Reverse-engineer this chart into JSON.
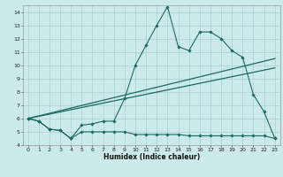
{
  "background_color": "#cdeaea",
  "grid_color": "#aacfcf",
  "line_color": "#1a6b5f",
  "xlim": [
    -0.5,
    23.5
  ],
  "ylim": [
    4,
    14.5
  ],
  "xlabel": "Humidex (Indice chaleur)",
  "curve1_x": [
    0,
    1,
    2,
    3,
    4,
    5,
    6,
    7,
    8,
    9,
    10,
    11,
    12,
    13,
    14,
    15,
    16,
    17,
    18,
    19,
    20,
    21,
    22,
    23
  ],
  "curve1_y": [
    6.0,
    5.8,
    5.2,
    5.1,
    4.5,
    5.5,
    5.6,
    5.8,
    5.8,
    7.5,
    10.0,
    11.5,
    13.0,
    14.4,
    11.4,
    11.1,
    12.5,
    12.5,
    12.0,
    11.1,
    10.6,
    7.8,
    6.5,
    4.5
  ],
  "curve2_x": [
    0,
    1,
    2,
    3,
    4,
    5,
    6,
    7,
    8,
    9,
    10,
    11,
    12,
    13,
    14,
    15,
    16,
    17,
    18,
    19,
    20,
    21,
    22,
    23
  ],
  "curve2_y": [
    6.0,
    5.8,
    5.2,
    5.1,
    4.5,
    5.0,
    5.0,
    5.0,
    5.0,
    5.0,
    4.8,
    4.8,
    4.8,
    4.8,
    4.8,
    4.7,
    4.7,
    4.7,
    4.7,
    4.7,
    4.7,
    4.7,
    4.7,
    4.5
  ],
  "trend1_x": [
    0,
    23
  ],
  "trend1_y": [
    6.0,
    10.5
  ],
  "trend2_x": [
    0,
    23
  ],
  "trend2_y": [
    6.0,
    9.8
  ]
}
